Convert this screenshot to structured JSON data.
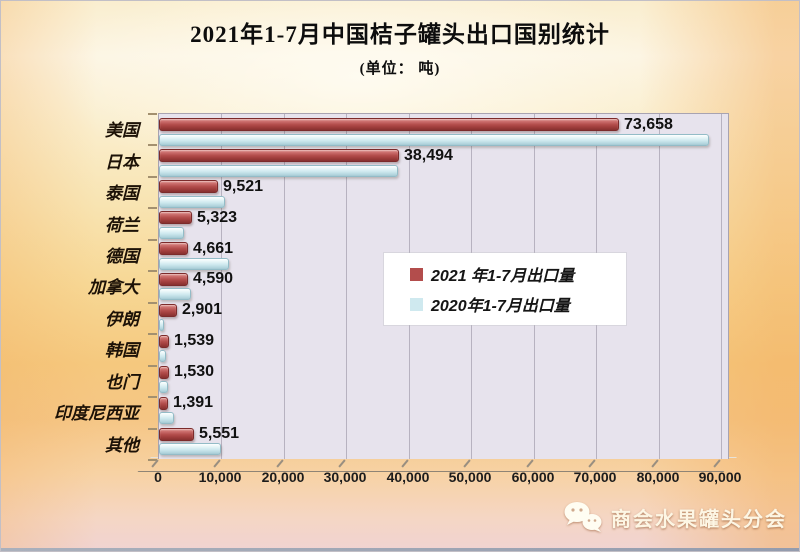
{
  "title": "2021年1-7月中国桔子罐头出口国别统计",
  "subtitle": "(单位： 吨)",
  "watermark": "商会水果罐头分会",
  "watermark_icon": "wechat-icon",
  "colors": {
    "bar_2021": "#b34d4c",
    "bar_2020": "#cfe9ef",
    "plot_bg": "#e7e3ed",
    "gridline": "#b7b2c0",
    "floor": "#b5a897",
    "legend_bg": "#ffffff",
    "value_text": "#111111",
    "background_top": "#fcf5e3",
    "background_mid": "#f5c87e",
    "background_bottom": "#f0d3d2"
  },
  "chart_data": {
    "type": "bar",
    "orientation": "horizontal",
    "title": "2021年1-7月中国桔子罐头出口国别统计",
    "unit_note": "(单位： 吨)",
    "categories": [
      "美国",
      "日本",
      "泰国",
      "荷兰",
      "德国",
      "加拿大",
      "伊朗",
      "韩国",
      "也门",
      "印度尼西亚",
      "其他"
    ],
    "series": [
      {
        "name": "2021 年1-7月出口量",
        "color": "#b34d4c",
        "values": [
          73658,
          38494,
          9521,
          5323,
          4661,
          4590,
          2901,
          1539,
          1530,
          1391,
          5551
        ],
        "value_labels": [
          "73,658",
          "38,494",
          "9,521",
          "5,323",
          "4,661",
          "4,590",
          "2,901",
          "1,539",
          "1,530",
          "1,391",
          "5,551"
        ]
      },
      {
        "name": "2020年1-7月出口量",
        "color": "#cfe9ef",
        "values": [
          88000,
          38300,
          10500,
          4000,
          11200,
          5100,
          500,
          1200,
          1400,
          2400,
          9900
        ],
        "estimated": true
      }
    ],
    "xlim": [
      0,
      91500
    ],
    "x_ticks": [
      0,
      10000,
      20000,
      30000,
      40000,
      50000,
      60000,
      70000,
      80000,
      90000
    ],
    "x_tick_labels": [
      "0",
      "10,000",
      "20,000",
      "30,000",
      "40,000",
      "50,000",
      "60,000",
      "70,000",
      "80,000",
      "90,000"
    ],
    "grid": true,
    "legend_position": "center-right"
  }
}
